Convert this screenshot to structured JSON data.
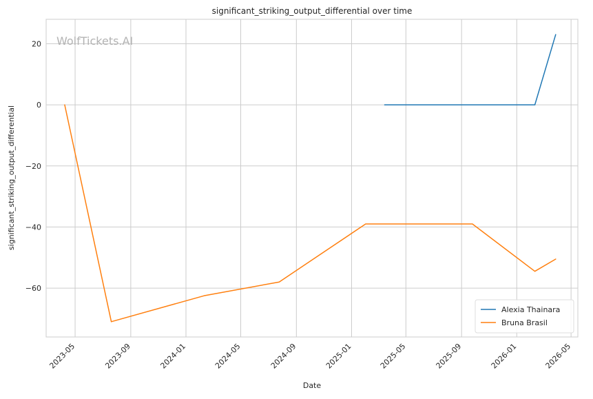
{
  "chart_data": {
    "type": "line",
    "title": "significant_striking_output_differential over time",
    "xlabel": "Date",
    "ylabel": "significant_striking_output_differential",
    "watermark": "WolfTickets.AI",
    "x_ticks": [
      "2023-05",
      "2023-09",
      "2024-01",
      "2024-05",
      "2024-09",
      "2025-01",
      "2025-05",
      "2025-09",
      "2026-01",
      "2026-05"
    ],
    "y_ticks": [
      20,
      0,
      -20,
      -40,
      -60
    ],
    "y_tick_labels": [
      "20",
      "0",
      "−20",
      "−40",
      "−60"
    ],
    "ylim": [
      -76,
      28
    ],
    "xlim": [
      "2023-02-26",
      "2026-05-16"
    ],
    "grid": true,
    "legend_position": "lower-right",
    "series": [
      {
        "name": "Alexia Thainara",
        "color": "#1f77b4",
        "points": [
          {
            "x": "2025-03-15",
            "y": 0
          },
          {
            "x": "2025-09-10",
            "y": 0
          },
          {
            "x": "2026-02-10",
            "y": 0
          },
          {
            "x": "2026-03-28",
            "y": 23
          }
        ]
      },
      {
        "name": "Bruna Brasil",
        "color": "#ff7f0e",
        "points": [
          {
            "x": "2023-04-08",
            "y": 0
          },
          {
            "x": "2023-07-20",
            "y": -71
          },
          {
            "x": "2024-02-10",
            "y": -62.5
          },
          {
            "x": "2024-07-25",
            "y": -58
          },
          {
            "x": "2025-02-01",
            "y": -39
          },
          {
            "x": "2025-09-25",
            "y": -39
          },
          {
            "x": "2026-02-10",
            "y": -54.5
          },
          {
            "x": "2026-03-28",
            "y": -50.5
          }
        ]
      }
    ]
  }
}
